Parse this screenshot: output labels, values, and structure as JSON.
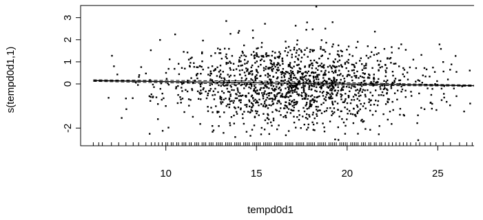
{
  "chart_data": {
    "type": "scatter",
    "xlabel": "tempd0d1",
    "ylabel": "s(tempd0d1,1)",
    "xlim": [
      5.3,
      27.0
    ],
    "ylim": [
      -2.8,
      3.55
    ],
    "x_ticks": [
      10,
      15,
      20,
      25
    ],
    "y_ticks": [
      -2,
      0,
      1,
      2,
      3
    ],
    "grid": false,
    "legend": "none",
    "smooth": {
      "x": [
        6.0,
        27.0
      ],
      "y": [
        0.15,
        -0.08
      ],
      "ci_halfwidth": [
        0.08,
        0.03
      ]
    },
    "residuals": {
      "count": 1500,
      "x_mean": 17.0,
      "x_sd": 3.5,
      "y_sd": 0.9,
      "seed": 11,
      "outliers": [
        {
          "x": 18.3,
          "y": 3.5
        }
      ]
    },
    "rug": {
      "x": [
        6.0,
        6.3,
        6.5,
        7.0,
        7.4,
        7.8,
        8.2,
        8.5,
        8.9,
        9.2,
        9.4,
        9.6,
        9.8,
        10.0,
        10.1,
        10.3,
        10.4,
        10.6,
        10.7,
        10.9,
        11.0,
        11.1,
        11.3,
        11.4,
        11.6,
        11.7,
        11.8,
        12.0,
        12.1,
        12.2,
        12.4,
        12.5,
        12.6,
        12.8,
        12.9,
        13.0,
        13.1,
        13.3,
        13.4,
        13.5,
        13.6,
        13.8,
        13.9,
        14.0,
        14.1,
        14.3,
        14.4,
        14.5,
        14.6,
        14.8,
        14.9,
        15.0,
        15.1,
        15.2,
        15.4,
        15.5,
        15.6,
        15.7,
        15.8,
        16.0,
        16.1,
        16.2,
        16.3,
        16.4,
        16.6,
        16.7,
        16.8,
        16.9,
        17.0,
        17.2,
        17.3,
        17.4,
        17.5,
        17.6,
        17.8,
        17.9,
        18.0,
        18.1,
        18.2,
        18.4,
        18.5,
        18.6,
        18.7,
        18.8,
        19.0,
        19.1,
        19.2,
        19.3,
        19.4,
        19.6,
        19.7,
        19.8,
        19.9,
        20.0,
        20.2,
        20.3,
        20.4,
        20.5,
        20.6,
        20.8,
        20.9,
        21.0,
        21.2,
        21.3,
        21.5,
        21.6,
        21.8,
        21.9,
        22.1,
        22.3,
        22.5,
        22.7,
        22.9,
        23.1,
        23.3,
        23.5,
        23.8,
        24.0,
        24.3,
        24.6,
        24.9,
        25.3,
        25.7,
        26.2,
        26.6,
        26.9
      ]
    }
  }
}
